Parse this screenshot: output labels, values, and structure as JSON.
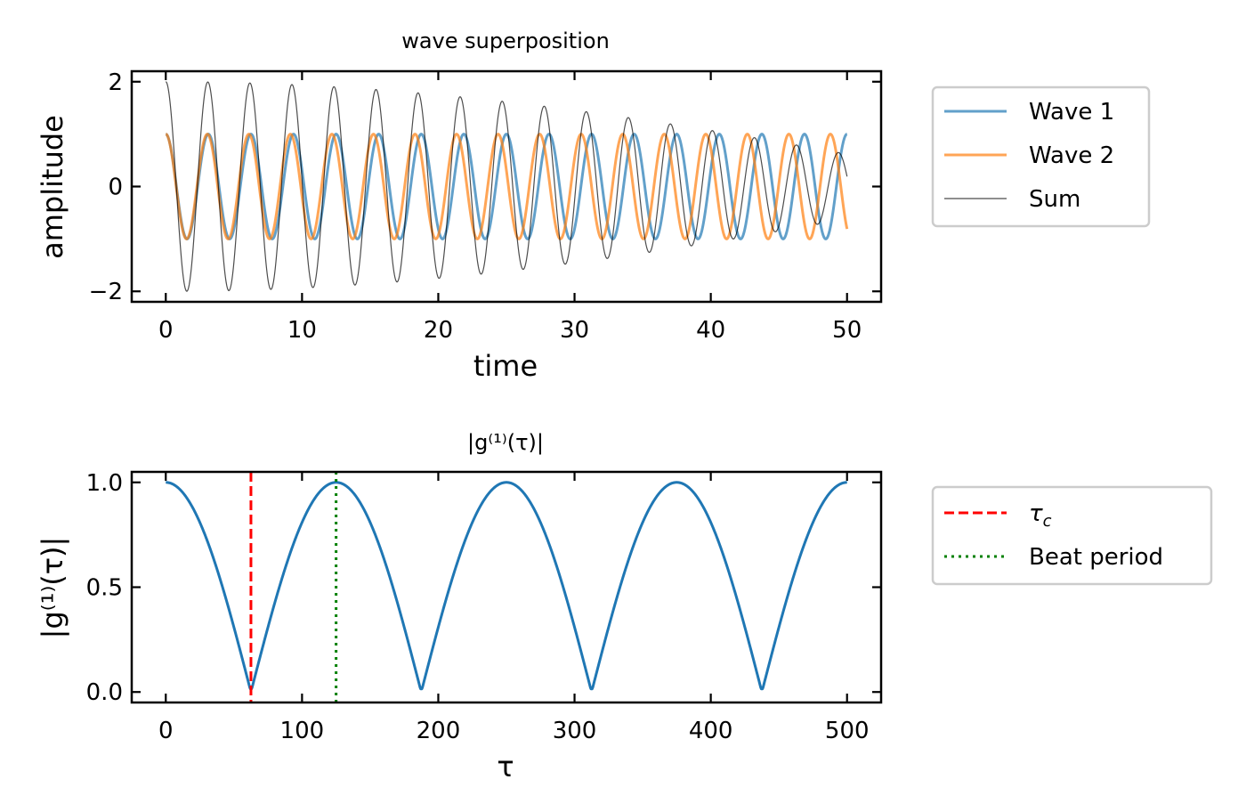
{
  "chart_data": [
    {
      "type": "line",
      "title": "wave superposition",
      "xlabel": "time",
      "ylabel": "amplitude",
      "xlim": [
        -2.5,
        52.5
      ],
      "ylim": [
        -2.2,
        2.2
      ],
      "xticks": [
        0,
        10,
        20,
        30,
        40,
        50
      ],
      "yticks": [
        -2,
        0,
        2
      ],
      "xtick_labels": [
        "0",
        "10",
        "20",
        "30",
        "40",
        "50"
      ],
      "ytick_labels": [
        "−2",
        "0",
        "2"
      ],
      "legend_position": "outside-right-top",
      "series": [
        {
          "name": "Wave 1",
          "function": "cos(2*pi*f*t)",
          "frequency": 0.32,
          "amplitude": 1,
          "color": "#1f77b4",
          "alpha": 0.7
        },
        {
          "name": "Wave 2",
          "function": "cos(2*pi*f*t)",
          "frequency": 0.328,
          "amplitude": 1,
          "color": "#ff7f0e",
          "alpha": 0.7
        },
        {
          "name": "Sum",
          "function": "wave1 + wave2",
          "color": "#000000",
          "alpha": 0.7
        }
      ],
      "t_range": [
        0,
        50
      ]
    },
    {
      "type": "line",
      "title": "|g⁽¹⁾(τ)|",
      "xlabel": "τ",
      "ylabel": "|g⁽¹⁾(τ)|",
      "xlim": [
        -25,
        525
      ],
      "ylim": [
        -0.05,
        1.05
      ],
      "xticks": [
        0,
        100,
        200,
        300,
        400,
        500
      ],
      "yticks": [
        0.0,
        0.5,
        1.0
      ],
      "xtick_labels": [
        "0",
        "100",
        "200",
        "300",
        "400",
        "500"
      ],
      "ytick_labels": [
        "0.0",
        "0.5",
        "1.0"
      ],
      "legend_position": "outside-right-top",
      "series": [
        {
          "name": "",
          "function": "|cos(pi*df*tau)|",
          "beat_period": 125,
          "color": "#1f77b4"
        }
      ],
      "tau_range": [
        0,
        500
      ],
      "vlines": [
        {
          "name": "τ",
          "subscript": "c",
          "x": 62.5,
          "color": "#ff0000",
          "style": "dashed"
        },
        {
          "name": "Beat period",
          "x": 125,
          "color": "#008000",
          "style": "dotted"
        }
      ]
    }
  ]
}
